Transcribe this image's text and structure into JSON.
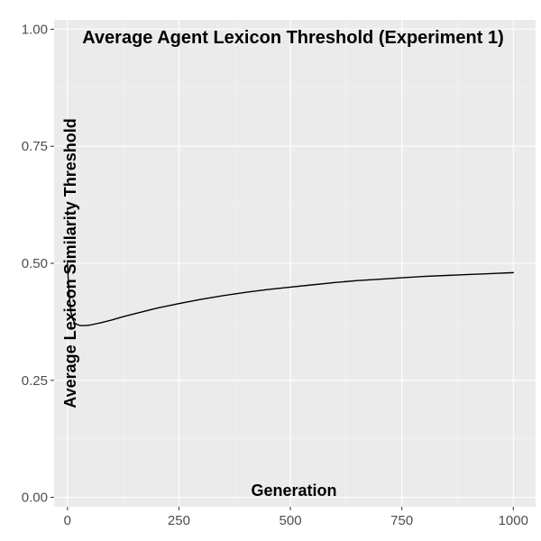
{
  "chart_data": {
    "type": "line",
    "title": "Average Agent Lexicon Threshold (Experiment 1)",
    "xlabel": "Generation",
    "ylabel": "Average Lexicon Similarity Threshold",
    "xlim": [
      -30,
      1050
    ],
    "ylim": [
      -0.02,
      1.02
    ],
    "x_ticks": [
      0,
      250,
      500,
      750,
      1000
    ],
    "x_tick_labels": [
      "0",
      "250",
      "500",
      "750",
      "1000"
    ],
    "y_ticks": [
      0,
      0.25,
      0.5,
      0.75,
      1.0
    ],
    "y_tick_labels": [
      "0.00",
      "0.25",
      "0.50",
      "0.75",
      "1.00"
    ],
    "grid": true,
    "legend": "none",
    "series": [
      {
        "color": "#000000",
        "x": [
          0,
          2,
          5,
          8,
          12,
          16,
          20,
          25,
          30,
          40,
          50,
          60,
          75,
          100,
          125,
          150,
          200,
          250,
          300,
          350,
          400,
          450,
          500,
          550,
          600,
          650,
          700,
          750,
          800,
          850,
          900,
          950,
          1000
        ],
        "y": [
          0.5,
          0.46,
          0.42,
          0.395,
          0.38,
          0.373,
          0.37,
          0.368,
          0.367,
          0.367,
          0.368,
          0.37,
          0.373,
          0.379,
          0.386,
          0.392,
          0.404,
          0.414,
          0.423,
          0.431,
          0.438,
          0.444,
          0.449,
          0.454,
          0.459,
          0.463,
          0.466,
          0.469,
          0.472,
          0.474,
          0.476,
          0.478,
          0.48
        ]
      }
    ]
  },
  "colors": {
    "panel_background": "#ebebeb",
    "grid_major": "#ffffff",
    "grid_minor": "#f5f5f5",
    "line": "#000000",
    "tick_text": "#4d4d4d"
  }
}
